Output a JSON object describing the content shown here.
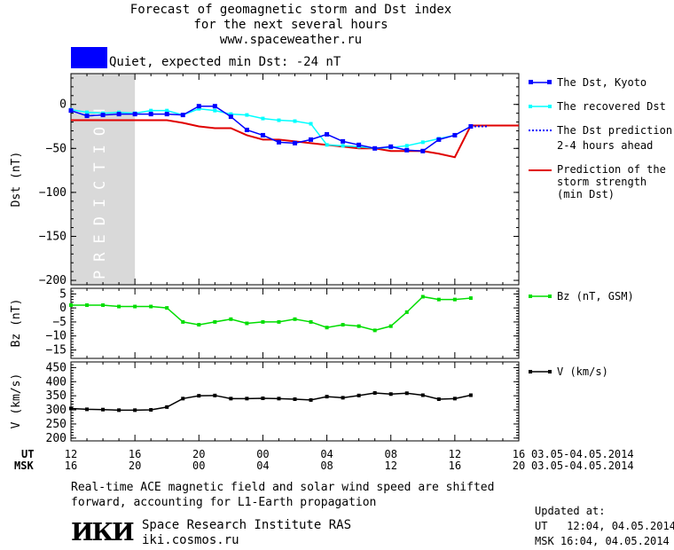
{
  "header": {
    "title_line1": "Forecast of geomagnetic storm and Dst index",
    "title_line2": "for the next several hours",
    "website": "www.spaceweather.ru",
    "status_text": "Quiet, expected min Dst: -24 nT",
    "status_color": "#0000ff"
  },
  "colors": {
    "dst_kyoto": "#0000ff",
    "dst_recovered": "#00ffff",
    "prediction": "#0000ff",
    "storm_strength": "#e00000",
    "bz": "#00dd00",
    "v": "#000000",
    "prediction_band": "#d9d9d9"
  },
  "chart_data": [
    {
      "type": "line",
      "ylabel": "Dst (nT)",
      "ylim": [
        -205,
        35
      ],
      "yticks": [
        0,
        -50,
        -100,
        -150,
        -200
      ],
      "xlim": [
        12,
        40
      ],
      "prediction_band": [
        12,
        16
      ],
      "prediction_label": "PREDICTION",
      "series": [
        {
          "name": "The Dst, Kyoto",
          "x": [
            12,
            13,
            14,
            15,
            16,
            17,
            18,
            19,
            20,
            21,
            22,
            23,
            24,
            25,
            26,
            27,
            28,
            29,
            30,
            31,
            32,
            33,
            34,
            35,
            36,
            37
          ],
          "values": [
            -7,
            -13,
            -12,
            -11,
            -11,
            -11,
            -11,
            -12,
            -2,
            -2,
            -14,
            -29,
            -35,
            -43,
            -44,
            -40,
            -34,
            -42,
            -46,
            -50,
            -48,
            -52,
            -53,
            -40,
            -35,
            -25
          ]
        },
        {
          "name": "The recovered Dst",
          "x": [
            12,
            13,
            14,
            15,
            16,
            17,
            18,
            19,
            20,
            21,
            22,
            23,
            24,
            25,
            26,
            27,
            28,
            29,
            30,
            31,
            32,
            33,
            34,
            35,
            36,
            37
          ],
          "values": [
            -6,
            -9,
            -10,
            -9,
            -10,
            -7,
            -7,
            -12,
            -5,
            -7,
            -11,
            -12,
            -16,
            -18,
            -19,
            -22,
            -46,
            -47,
            -48,
            -50,
            -49,
            -47,
            -43,
            -39,
            -35,
            -25
          ]
        },
        {
          "name": "The Dst prediction",
          "x": [
            37,
            38
          ],
          "values": [
            -25,
            -25
          ]
        },
        {
          "name": "Prediction of the storm strength (min Dst)",
          "x": [
            12,
            15,
            17,
            18,
            19,
            20,
            21,
            22,
            23,
            24,
            25,
            26,
            27,
            28,
            29,
            30,
            31,
            32,
            33,
            34,
            35,
            36,
            37,
            38,
            40
          ],
          "values": [
            -18,
            -18,
            -18,
            -18,
            -21,
            -25,
            -27,
            -27,
            -35,
            -40,
            -40,
            -42,
            -44,
            -46,
            -48,
            -50,
            -50,
            -53,
            -53,
            -53,
            -56,
            -60,
            -24,
            -24,
            -24
          ]
        }
      ]
    },
    {
      "type": "line",
      "ylabel": "Bz (nT)",
      "ylim": [
        -18,
        7
      ],
      "yticks": [
        5,
        0,
        -5,
        -10,
        -15
      ],
      "series": [
        {
          "name": "Bz (nT, GSM)",
          "x": [
            12,
            13,
            14,
            15,
            16,
            17,
            18,
            19,
            20,
            21,
            22,
            23,
            24,
            25,
            26,
            27,
            28,
            29,
            30,
            31,
            32,
            33,
            34,
            35,
            36,
            37
          ],
          "values": [
            1,
            1,
            1,
            0.5,
            0.5,
            0.5,
            0,
            -5,
            -6,
            -5,
            -4,
            -5.5,
            -5,
            -5,
            -4,
            -5,
            -7,
            -6,
            -6.5,
            -8,
            -6.5,
            -1.5,
            4,
            3,
            3,
            3.5
          ]
        }
      ]
    },
    {
      "type": "line",
      "ylabel": "V (km/s)",
      "ylim": [
        190,
        470
      ],
      "yticks": [
        450,
        400,
        350,
        300,
        250,
        200
      ],
      "series": [
        {
          "name": "V (km/s)",
          "x": [
            12,
            13,
            14,
            15,
            16,
            17,
            18,
            19,
            20,
            21,
            22,
            23,
            24,
            25,
            26,
            27,
            28,
            29,
            30,
            31,
            32,
            33,
            34,
            35,
            36,
            37
          ],
          "values": [
            305,
            302,
            301,
            299,
            299,
            300,
            310,
            340,
            350,
            351,
            340,
            340,
            341,
            340,
            338,
            335,
            347,
            343,
            351,
            360,
            356,
            359,
            352,
            338,
            340,
            352
          ]
        }
      ]
    }
  ],
  "axis": {
    "ut_label": "UT",
    "msk_label": "MSK",
    "ut_ticks": [
      "12",
      "16",
      "20",
      "00",
      "04",
      "08",
      "12",
      "16"
    ],
    "msk_ticks": [
      "16",
      "20",
      "00",
      "04",
      "08",
      "12",
      "16",
      "20"
    ],
    "ut_range": "03.05-04.05.2014",
    "msk_range": "03.05-04.05.2014"
  },
  "legend": {
    "dst_kyoto": "The Dst, Kyoto",
    "recovered": "The recovered Dst",
    "prediction_l1": "The Dst prediction",
    "prediction_l2": "2-4 hours ahead",
    "storm_l1": "Prediction of the",
    "storm_l2": "storm strength",
    "storm_l3": "(min Dst)",
    "bz": "Bz (nT, GSM)",
    "v": "V (km/s)"
  },
  "footer": {
    "note_line1": "Real-time ACE magnetic field and solar wind speed are shifted",
    "note_line2": "forward, accounting for L1-Earth propagation",
    "updated_label": "Updated at:",
    "ut_updated": "UT   12:04, 04.05.2014",
    "msk_updated": "MSK 16:04, 04.05.2014",
    "logo_text": "ИКИ",
    "institute": "Space Research Institute RAS",
    "site": "iki.cosmos.ru"
  }
}
